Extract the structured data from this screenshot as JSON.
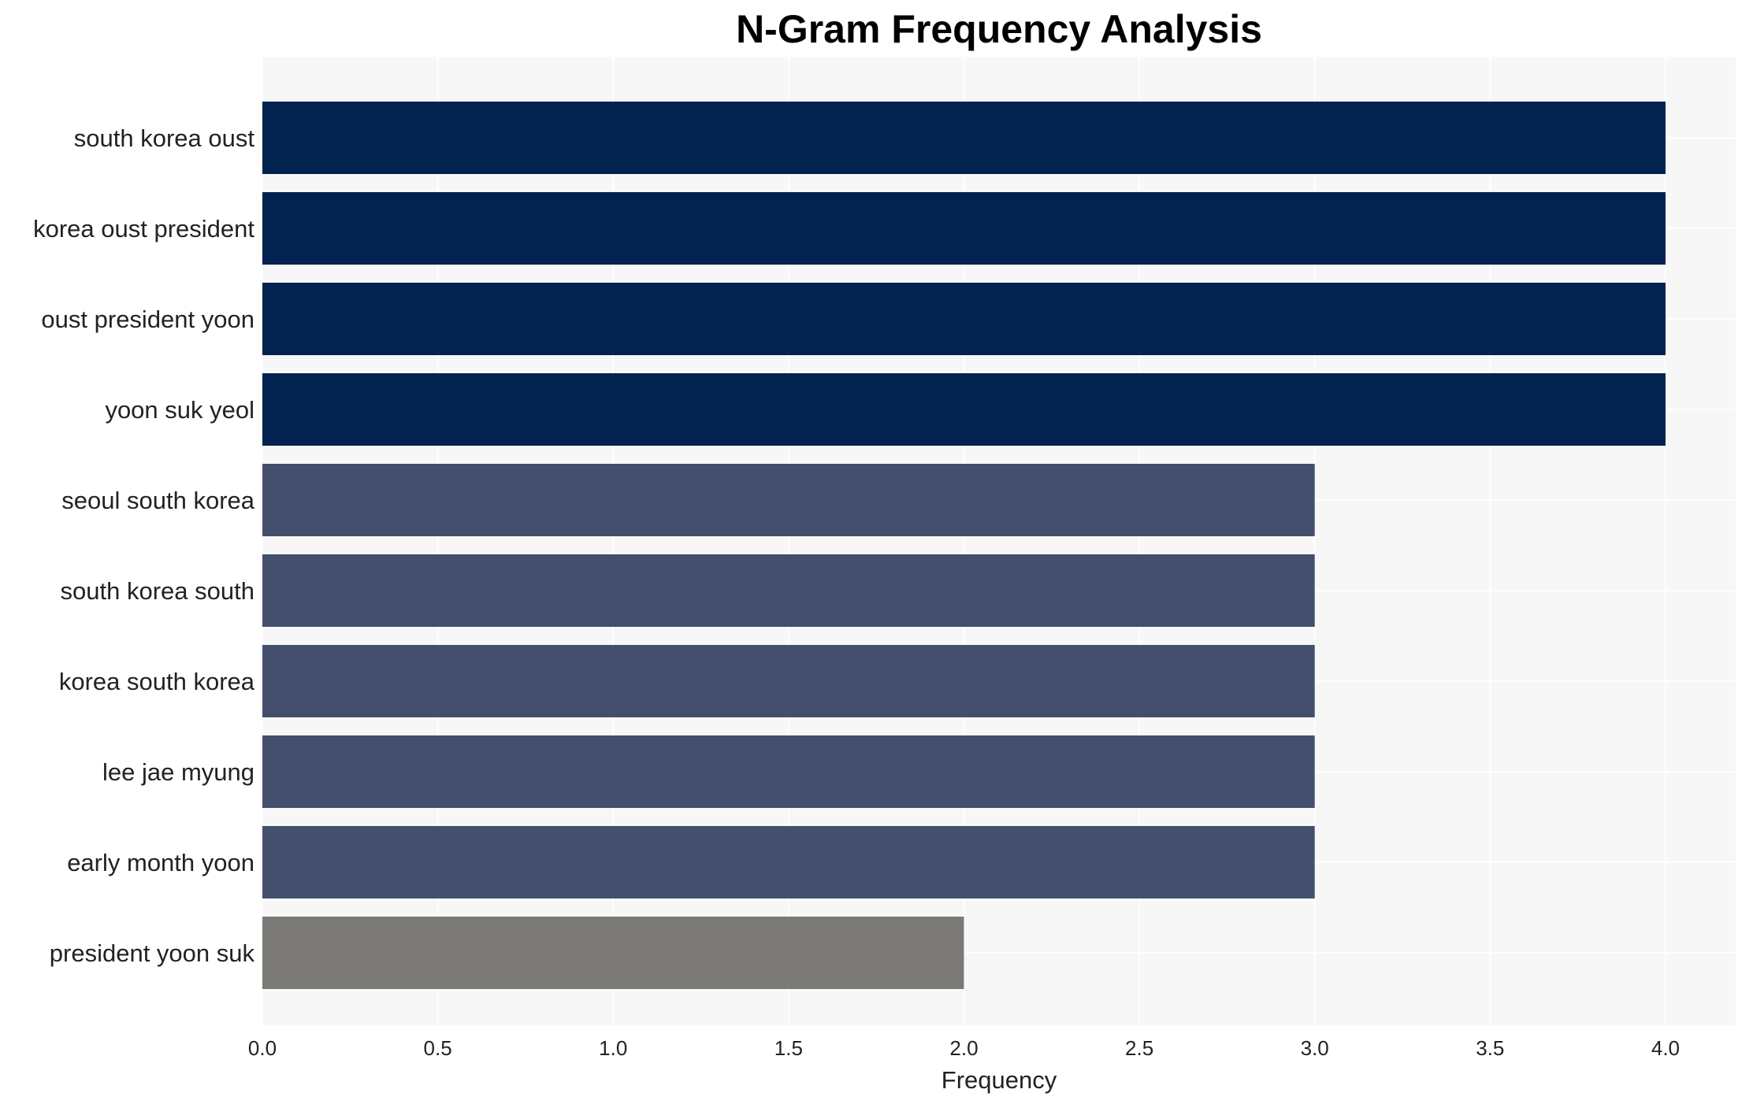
{
  "chart_data": {
    "type": "bar",
    "orientation": "horizontal",
    "title": "N-Gram Frequency Analysis",
    "xlabel": "Frequency",
    "ylabel": "",
    "xlim": [
      0,
      4.2
    ],
    "xticks": [
      0.0,
      0.5,
      1.0,
      1.5,
      2.0,
      2.5,
      3.0,
      3.5,
      4.0
    ],
    "xtick_labels": [
      "0.0",
      "0.5",
      "1.0",
      "1.5",
      "2.0",
      "2.5",
      "3.0",
      "3.5",
      "4.0"
    ],
    "grid": true,
    "legend": "none",
    "background_color": "#f7f7f8",
    "categories": [
      "south korea oust",
      "korea oust president",
      "oust president yoon",
      "yoon suk yeol",
      "seoul south korea",
      "south korea south",
      "korea south korea",
      "lee jae myung",
      "early month yoon",
      "president yoon suk"
    ],
    "values": [
      4,
      4,
      4,
      4,
      3,
      3,
      3,
      3,
      3,
      2
    ],
    "colors": [
      "#02224f",
      "#02224f",
      "#02224f",
      "#02224f",
      "#434f6d",
      "#434f6d",
      "#434f6d",
      "#434f6d",
      "#434f6d",
      "#7b7a76"
    ]
  }
}
